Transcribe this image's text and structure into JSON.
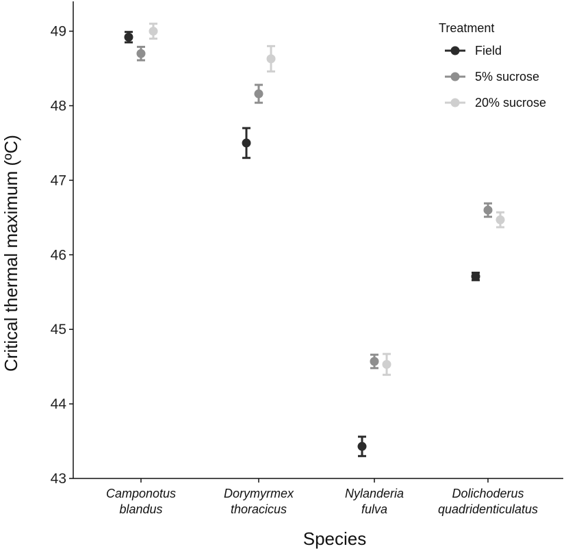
{
  "chart_data": {
    "type": "scatter",
    "xlabel": "Species",
    "ylabel": "Critical thermal maximum (ºC)",
    "ylim": [
      43,
      49.4
    ],
    "yticks": [
      43,
      44,
      45,
      46,
      47,
      48,
      49
    ],
    "grid": false,
    "legend_position": "top-right",
    "legend_title": "Treatment",
    "categories": [
      [
        "Camponotus",
        "blandus"
      ],
      [
        "Dorymyrmex",
        "thoracicus"
      ],
      [
        "Nylanderia",
        "fulva"
      ],
      [
        "Dolichoderus",
        "quadridenticulatus"
      ]
    ],
    "series": [
      {
        "name": "Field",
        "color": "#2b2b2b",
        "points": [
          {
            "y": 48.92,
            "low": 48.85,
            "high": 48.99
          },
          {
            "y": 47.5,
            "low": 47.3,
            "high": 47.7
          },
          {
            "y": 43.43,
            "low": 43.3,
            "high": 43.56
          },
          {
            "y": 45.71,
            "low": 45.66,
            "high": 45.76
          }
        ]
      },
      {
        "name": "5% sucrose",
        "color": "#8e8e8e",
        "points": [
          {
            "y": 48.7,
            "low": 48.61,
            "high": 48.79
          },
          {
            "y": 48.16,
            "low": 48.04,
            "high": 48.28
          },
          {
            "y": 44.57,
            "low": 44.48,
            "high": 44.66
          },
          {
            "y": 46.6,
            "low": 46.51,
            "high": 46.69
          }
        ]
      },
      {
        "name": "20% sucrose",
        "color": "#cfcfcf",
        "points": [
          {
            "y": 49.0,
            "low": 48.9,
            "high": 49.1
          },
          {
            "y": 48.63,
            "low": 48.46,
            "high": 48.8
          },
          {
            "y": 44.53,
            "low": 44.39,
            "high": 44.67
          },
          {
            "y": 46.47,
            "low": 46.37,
            "high": 46.57
          }
        ]
      }
    ]
  }
}
